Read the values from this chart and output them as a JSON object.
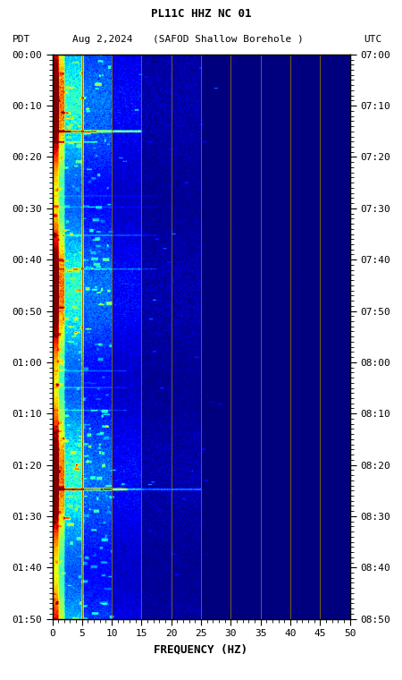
{
  "title_line1": "PL11C HHZ NC 01",
  "title_line2_left": "PDT",
  "title_line2_date": "Aug 2,2024",
  "title_line2_station": "(SAFOD Shallow Borehole )",
  "title_line2_right": "UTC",
  "xlabel": "FREQUENCY (HZ)",
  "freq_min": 0,
  "freq_max": 50,
  "left_tick_labels": [
    "00:00",
    "00:10",
    "00:20",
    "00:30",
    "00:40",
    "00:50",
    "01:00",
    "01:10",
    "01:20",
    "01:30",
    "01:40",
    "01:50"
  ],
  "right_tick_labels": [
    "07:00",
    "07:10",
    "07:20",
    "07:30",
    "07:40",
    "07:50",
    "08:00",
    "08:10",
    "08:20",
    "08:30",
    "08:40",
    "08:50"
  ],
  "freq_ticks": [
    0,
    5,
    10,
    15,
    20,
    25,
    30,
    35,
    40,
    45,
    50
  ],
  "vert_grid_freqs": [
    5,
    10,
    15,
    20,
    25,
    30,
    35,
    40,
    45
  ],
  "grid_color": "#8B7000",
  "colormap": "jet",
  "fig_width": 4.5,
  "fig_height": 7.6,
  "dpi": 100,
  "num_time_steps": 1320,
  "num_freq_steps": 500
}
